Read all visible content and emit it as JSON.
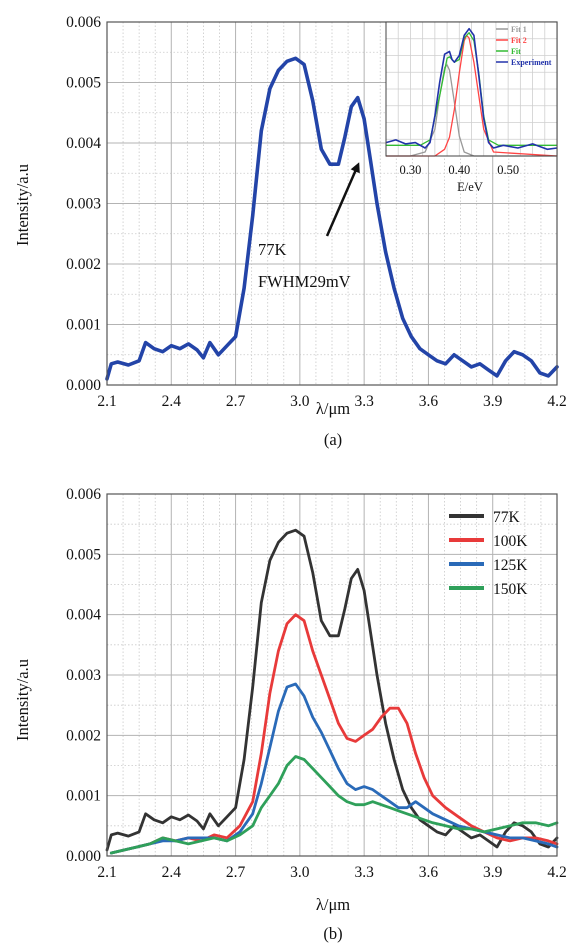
{
  "figure": {
    "panels": [
      {
        "caption": "(a)",
        "annotation": [
          "77K",
          "FWHM29mV"
        ]
      },
      {
        "caption": "(b)"
      }
    ]
  },
  "chart_data": [
    {
      "type": "line",
      "panel": "(a)",
      "xlabel": "λ/μm",
      "ylabel": "Intensity/a.u",
      "xlim": [
        2.1,
        4.2
      ],
      "ylim": [
        0.0,
        0.006
      ],
      "xticks": [
        "2.1",
        "2.4",
        "2.7",
        "3.0",
        "3.3",
        "3.6",
        "3.9",
        "4.2"
      ],
      "yticks": [
        "0.000",
        "0.001",
        "0.002",
        "0.003",
        "0.004",
        "0.005",
        "0.006"
      ],
      "grid": true,
      "annotation": "77K FWHM29mV",
      "series": [
        {
          "color": "#2344a8",
          "x": [
            2.1,
            2.12,
            2.15,
            2.2,
            2.25,
            2.28,
            2.32,
            2.36,
            2.4,
            2.44,
            2.48,
            2.52,
            2.55,
            2.58,
            2.62,
            2.66,
            2.7,
            2.74,
            2.78,
            2.82,
            2.86,
            2.9,
            2.94,
            2.98,
            3.02,
            3.06,
            3.1,
            3.14,
            3.18,
            3.21,
            3.24,
            3.27,
            3.3,
            3.33,
            3.36,
            3.4,
            3.44,
            3.48,
            3.52,
            3.56,
            3.6,
            3.64,
            3.68,
            3.72,
            3.76,
            3.8,
            3.84,
            3.88,
            3.92,
            3.96,
            4.0,
            4.04,
            4.08,
            4.12,
            4.16,
            4.2
          ],
          "y": [
            0.0001,
            0.00035,
            0.00038,
            0.00033,
            0.0004,
            0.0007,
            0.0006,
            0.00055,
            0.00065,
            0.0006,
            0.00068,
            0.00058,
            0.00045,
            0.0007,
            0.0005,
            0.00065,
            0.0008,
            0.0016,
            0.0028,
            0.0042,
            0.0049,
            0.0052,
            0.00535,
            0.0054,
            0.0053,
            0.0047,
            0.0039,
            0.00365,
            0.00365,
            0.0041,
            0.0046,
            0.00475,
            0.0044,
            0.0037,
            0.003,
            0.0022,
            0.0016,
            0.0011,
            0.0008,
            0.0006,
            0.0005,
            0.0004,
            0.00035,
            0.0005,
            0.0004,
            0.0003,
            0.00035,
            0.00025,
            0.00015,
            0.0004,
            0.00055,
            0.0005,
            0.0004,
            0.0002,
            0.00015,
            0.0003
          ]
        }
      ],
      "inset": {
        "xlabel": "E/eV",
        "xlim": [
          0.25,
          0.6
        ],
        "xticks": [
          "0.30",
          "0.40",
          "0.50"
        ],
        "legend": [
          {
            "name": "Fit 1",
            "color": "#999999"
          },
          {
            "name": "Fit 2",
            "color": "#ff4444"
          },
          {
            "name": "Fit",
            "color": "#33bb33"
          },
          {
            "name": "Experiment",
            "color": "#2233aa"
          }
        ],
        "series": [
          {
            "name": "Fit 1",
            "x": [
              0.25,
              0.3,
              0.33,
              0.35,
              0.36,
              0.37,
              0.375,
              0.38,
              0.39,
              0.4,
              0.41,
              0.43,
              0.6
            ],
            "y": [
              0.0,
              0.0,
              0.03,
              0.2,
              0.45,
              0.66,
              0.68,
              0.64,
              0.4,
              0.15,
              0.03,
              0.0,
              0.0
            ]
          },
          {
            "name": "Fit 2",
            "x": [
              0.25,
              0.35,
              0.37,
              0.38,
              0.39,
              0.4,
              0.41,
              0.415,
              0.42,
              0.43,
              0.44,
              0.45,
              0.47,
              0.6
            ],
            "y": [
              0.0,
              0.0,
              0.05,
              0.14,
              0.35,
              0.62,
              0.86,
              0.9,
              0.88,
              0.7,
              0.45,
              0.2,
              0.03,
              0.0
            ]
          },
          {
            "name": "Fit",
            "x": [
              0.25,
              0.32,
              0.34,
              0.36,
              0.375,
              0.38,
              0.39,
              0.4,
              0.41,
              0.42,
              0.43,
              0.44,
              0.45,
              0.46,
              0.48,
              0.6
            ],
            "y": [
              0.08,
              0.08,
              0.12,
              0.45,
              0.73,
              0.74,
              0.7,
              0.72,
              0.88,
              0.92,
              0.86,
              0.62,
              0.3,
              0.12,
              0.08,
              0.08
            ]
          },
          {
            "name": "Experiment",
            "x": [
              0.25,
              0.27,
              0.29,
              0.31,
              0.33,
              0.34,
              0.35,
              0.36,
              0.37,
              0.38,
              0.385,
              0.39,
              0.4,
              0.41,
              0.42,
              0.43,
              0.44,
              0.45,
              0.46,
              0.47,
              0.49,
              0.52,
              0.55,
              0.58,
              0.6
            ],
            "y": [
              0.1,
              0.12,
              0.09,
              0.1,
              0.06,
              0.1,
              0.3,
              0.55,
              0.76,
              0.78,
              0.72,
              0.7,
              0.75,
              0.9,
              0.95,
              0.9,
              0.6,
              0.28,
              0.1,
              0.06,
              0.08,
              0.06,
              0.09,
              0.05,
              0.06
            ]
          }
        ]
      }
    },
    {
      "type": "line",
      "panel": "(b)",
      "xlabel": "λ/μm",
      "ylabel": "Intensity/a.u",
      "xlim": [
        2.1,
        4.2
      ],
      "ylim": [
        0.0,
        0.006
      ],
      "xticks": [
        "2.1",
        "2.4",
        "2.7",
        "3.0",
        "3.3",
        "3.6",
        "3.9",
        "4.2"
      ],
      "yticks": [
        "0.000",
        "0.001",
        "0.002",
        "0.003",
        "0.004",
        "0.005",
        "0.006"
      ],
      "grid": true,
      "legend_position": "top-right",
      "series": [
        {
          "name": "77K",
          "color": "#333333",
          "x": [
            2.1,
            2.12,
            2.15,
            2.2,
            2.25,
            2.28,
            2.32,
            2.36,
            2.4,
            2.44,
            2.48,
            2.52,
            2.55,
            2.58,
            2.62,
            2.66,
            2.7,
            2.74,
            2.78,
            2.82,
            2.86,
            2.9,
            2.94,
            2.98,
            3.02,
            3.06,
            3.1,
            3.14,
            3.18,
            3.21,
            3.24,
            3.27,
            3.3,
            3.33,
            3.36,
            3.4,
            3.44,
            3.48,
            3.52,
            3.56,
            3.6,
            3.64,
            3.68,
            3.72,
            3.76,
            3.8,
            3.84,
            3.88,
            3.92,
            3.96,
            4.0,
            4.04,
            4.08,
            4.12,
            4.16,
            4.2
          ],
          "y": [
            0.0001,
            0.00035,
            0.00038,
            0.00033,
            0.0004,
            0.0007,
            0.0006,
            0.00055,
            0.00065,
            0.0006,
            0.00068,
            0.00058,
            0.00045,
            0.0007,
            0.0005,
            0.00065,
            0.0008,
            0.0016,
            0.0028,
            0.0042,
            0.0049,
            0.0052,
            0.00535,
            0.0054,
            0.0053,
            0.0047,
            0.0039,
            0.00365,
            0.00365,
            0.0041,
            0.0046,
            0.00475,
            0.0044,
            0.0037,
            0.003,
            0.0022,
            0.0016,
            0.0011,
            0.0008,
            0.0006,
            0.0005,
            0.0004,
            0.00035,
            0.0005,
            0.0004,
            0.0003,
            0.00035,
            0.00025,
            0.00015,
            0.0004,
            0.00055,
            0.0005,
            0.0004,
            0.0002,
            0.00015,
            0.0003
          ]
        },
        {
          "name": "100K",
          "color": "#e83a3a",
          "x": [
            2.12,
            2.18,
            2.24,
            2.3,
            2.36,
            2.42,
            2.48,
            2.54,
            2.6,
            2.66,
            2.72,
            2.78,
            2.82,
            2.86,
            2.9,
            2.94,
            2.98,
            3.02,
            3.06,
            3.1,
            3.14,
            3.18,
            3.22,
            3.26,
            3.3,
            3.34,
            3.38,
            3.42,
            3.46,
            3.5,
            3.54,
            3.58,
            3.62,
            3.68,
            3.74,
            3.8,
            3.86,
            3.92,
            3.98,
            4.04,
            4.1,
            4.16,
            4.2
          ],
          "y": [
            5e-05,
            0.0001,
            0.00015,
            0.0002,
            0.0003,
            0.00025,
            0.0003,
            0.00025,
            0.00035,
            0.0003,
            0.0005,
            0.0009,
            0.0017,
            0.0027,
            0.0034,
            0.00385,
            0.004,
            0.0039,
            0.0034,
            0.003,
            0.0026,
            0.0022,
            0.00195,
            0.0019,
            0.002,
            0.0021,
            0.0023,
            0.00245,
            0.00245,
            0.0022,
            0.0017,
            0.0013,
            0.001,
            0.0008,
            0.00065,
            0.0005,
            0.0004,
            0.0003,
            0.00025,
            0.0003,
            0.0003,
            0.00025,
            0.0002
          ]
        },
        {
          "name": "125K",
          "color": "#2a6ab8",
          "x": [
            2.12,
            2.18,
            2.24,
            2.3,
            2.36,
            2.42,
            2.48,
            2.54,
            2.6,
            2.66,
            2.72,
            2.78,
            2.82,
            2.86,
            2.9,
            2.94,
            2.98,
            3.02,
            3.06,
            3.1,
            3.14,
            3.18,
            3.22,
            3.26,
            3.3,
            3.34,
            3.38,
            3.42,
            3.46,
            3.5,
            3.54,
            3.58,
            3.62,
            3.68,
            3.74,
            3.8,
            3.86,
            3.92,
            3.98,
            4.04,
            4.1,
            4.16,
            4.2
          ],
          "y": [
            5e-05,
            0.0001,
            0.00015,
            0.0002,
            0.00025,
            0.00025,
            0.0003,
            0.0003,
            0.0003,
            0.00025,
            0.0004,
            0.0007,
            0.0012,
            0.0018,
            0.0024,
            0.0028,
            0.00285,
            0.00265,
            0.0023,
            0.00205,
            0.00175,
            0.00145,
            0.0012,
            0.0011,
            0.00115,
            0.0011,
            0.001,
            0.0009,
            0.0008,
            0.0008,
            0.0009,
            0.0008,
            0.0007,
            0.0006,
            0.0005,
            0.00045,
            0.0004,
            0.00035,
            0.0003,
            0.0003,
            0.00025,
            0.0002,
            0.00015
          ]
        },
        {
          "name": "150K",
          "color": "#2fa05a",
          "x": [
            2.12,
            2.18,
            2.24,
            2.3,
            2.36,
            2.42,
            2.48,
            2.54,
            2.6,
            2.66,
            2.72,
            2.78,
            2.82,
            2.86,
            2.9,
            2.94,
            2.98,
            3.02,
            3.06,
            3.1,
            3.14,
            3.18,
            3.22,
            3.26,
            3.3,
            3.34,
            3.38,
            3.42,
            3.46,
            3.5,
            3.54,
            3.58,
            3.62,
            3.68,
            3.74,
            3.8,
            3.86,
            3.92,
            3.98,
            4.04,
            4.1,
            4.16,
            4.2
          ],
          "y": [
            5e-05,
            0.0001,
            0.00015,
            0.0002,
            0.0003,
            0.00025,
            0.0002,
            0.00025,
            0.0003,
            0.00025,
            0.00035,
            0.0005,
            0.0008,
            0.001,
            0.0012,
            0.0015,
            0.00165,
            0.0016,
            0.00145,
            0.0013,
            0.00115,
            0.001,
            0.0009,
            0.00085,
            0.00085,
            0.0009,
            0.00085,
            0.0008,
            0.00075,
            0.0007,
            0.00065,
            0.0006,
            0.00055,
            0.0005,
            0.00045,
            0.00045,
            0.0004,
            0.00045,
            0.0005,
            0.00055,
            0.00055,
            0.0005,
            0.00055
          ]
        }
      ]
    }
  ]
}
